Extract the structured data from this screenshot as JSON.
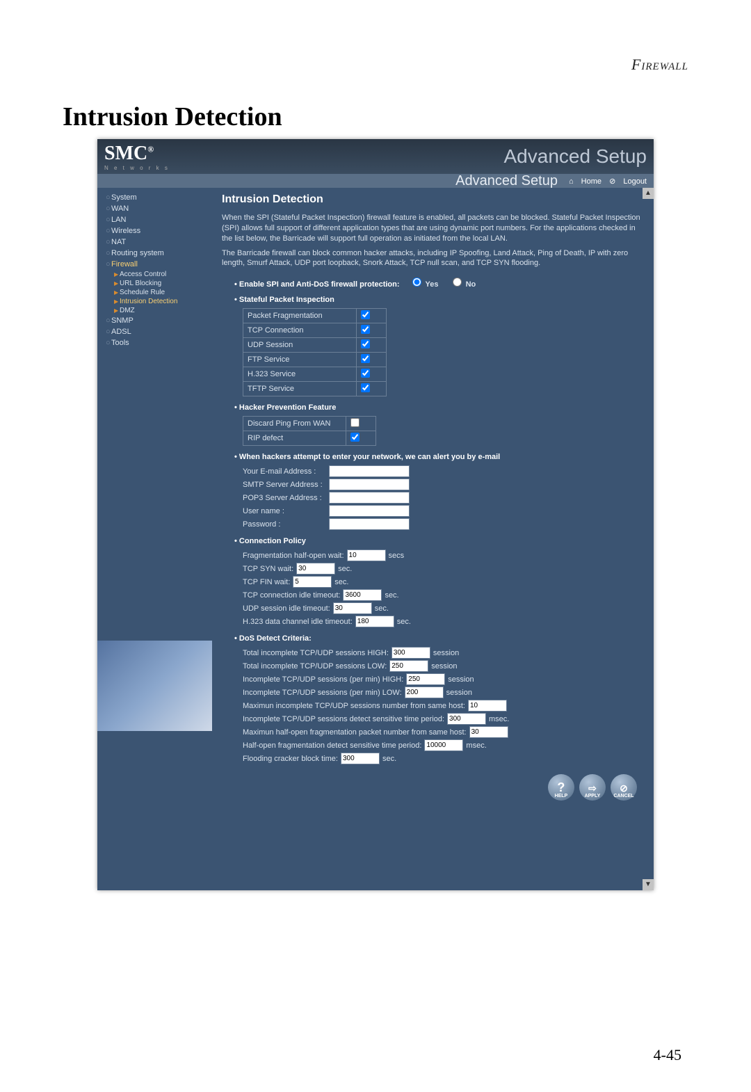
{
  "page": {
    "header_right": "Firewall",
    "section_title": "Intrusion Detection",
    "page_number": "4-45"
  },
  "logo": {
    "brand": "SMC",
    "tagline": "N e t w o r k s"
  },
  "topbar": {
    "setup_bg_text": "Advanced Setup",
    "setup_label": "Advanced Setup",
    "home": "Home",
    "logout": "Logout"
  },
  "sidebar": {
    "items": [
      {
        "label": "System",
        "type": "main"
      },
      {
        "label": "WAN",
        "type": "main"
      },
      {
        "label": "LAN",
        "type": "main"
      },
      {
        "label": "Wireless",
        "type": "main"
      },
      {
        "label": "NAT",
        "type": "main"
      },
      {
        "label": "Routing system",
        "type": "main"
      },
      {
        "label": "Firewall",
        "type": "main-sel"
      },
      {
        "label": "Access Control",
        "type": "sub"
      },
      {
        "label": "URL Blocking",
        "type": "sub"
      },
      {
        "label": "Schedule Rule",
        "type": "sub"
      },
      {
        "label": "Intrusion Detection",
        "type": "sub-sel"
      },
      {
        "label": "DMZ",
        "type": "sub"
      },
      {
        "label": "SNMP",
        "type": "main"
      },
      {
        "label": "ADSL",
        "type": "main"
      },
      {
        "label": "Tools",
        "type": "main"
      }
    ]
  },
  "content": {
    "title": "Intrusion Detection",
    "para1": "When the SPI (Stateful Packet Inspection) firewall feature is enabled, all packets can be blocked.  Stateful Packet Inspection (SPI) allows full support of different application types that are using dynamic port numbers.  For the applications checked in the list below, the Barricade will support full operation as initiated from the local LAN.",
    "para2": "The Barricade firewall can block common hacker attacks, including IP Spoofing, Land Attack, Ping of Death, IP with zero length, Smurf Attack, UDP port loopback, Snork Attack, TCP null scan, and TCP SYN flooding.",
    "enable_label": "Enable SPI and Anti-DoS firewall protection:",
    "yes": "Yes",
    "no": "No",
    "spi_header": "Stateful Packet Inspection",
    "spi_rows": [
      {
        "label": "Packet Fragmentation",
        "checked": true
      },
      {
        "label": "TCP Connection",
        "checked": true
      },
      {
        "label": "UDP Session",
        "checked": true
      },
      {
        "label": "FTP Service",
        "checked": true
      },
      {
        "label": "H.323 Service",
        "checked": true
      },
      {
        "label": "TFTP  Service",
        "checked": true
      }
    ],
    "hacker_header": "Hacker Prevention Feature",
    "hacker_rows": [
      {
        "label": "Discard Ping From WAN",
        "checked": false
      },
      {
        "label": "RIP defect",
        "checked": true
      }
    ],
    "email_header": "When hackers attempt to enter your network, we can alert you by e-mail",
    "email_fields": [
      {
        "label": "Your E-mail Address :",
        "value": ""
      },
      {
        "label": "SMTP Server Address :",
        "value": ""
      },
      {
        "label": "POP3 Server Address :",
        "value": ""
      },
      {
        "label": "User name :",
        "value": ""
      },
      {
        "label": "Password :",
        "value": ""
      }
    ],
    "conn_header": "Connection Policy",
    "conn_rows": [
      {
        "label": "Fragmentation half-open wait:",
        "value": "10",
        "unit": "secs"
      },
      {
        "label": "TCP SYN wait:",
        "value": "30",
        "unit": "sec."
      },
      {
        "label": "TCP FIN wait:",
        "value": "5",
        "unit": "sec."
      },
      {
        "label": "TCP connection idle timeout:",
        "value": "3600",
        "unit": "sec."
      },
      {
        "label": "UDP session idle timeout:",
        "value": "30",
        "unit": "sec."
      },
      {
        "label": "H.323 data channel idle timeout:",
        "value": "180",
        "unit": "sec."
      }
    ],
    "dos_header": "DoS Detect Criteria:",
    "dos_rows": [
      {
        "label": "Total incomplete TCP/UDP sessions HIGH:",
        "value": "300",
        "unit": "session"
      },
      {
        "label": "Total incomplete TCP/UDP sessions LOW:",
        "value": "250",
        "unit": "session"
      },
      {
        "label": "Incomplete TCP/UDP sessions (per min) HIGH:",
        "value": "250",
        "unit": "session"
      },
      {
        "label": "Incomplete TCP/UDP sessions (per min) LOW:",
        "value": "200",
        "unit": "session"
      },
      {
        "label": "Maximun incomplete TCP/UDP sessions number from same host:",
        "value": "10",
        "unit": ""
      },
      {
        "label": "Incomplete TCP/UDP sessions detect sensitive time period:",
        "value": "300",
        "unit": "msec."
      },
      {
        "label": "Maximun half-open fragmentation packet number from same host:",
        "value": "30",
        "unit": ""
      },
      {
        "label": "Half-open fragmentation detect sensitive time period:",
        "value": "10000",
        "unit": "msec."
      },
      {
        "label": "Flooding cracker block time:",
        "value": "300",
        "unit": "sec."
      }
    ]
  },
  "buttons": {
    "help": "HELP",
    "apply": "APPLY",
    "cancel": "CANCEL"
  }
}
